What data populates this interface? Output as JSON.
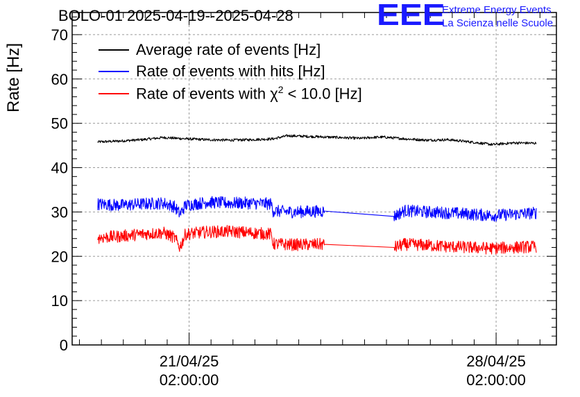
{
  "title": "BOLO-01 2025-04-19--2025-04-28",
  "logo": {
    "mark": "EEE",
    "line1": "Extreme Energy Events",
    "line2": "La Scienza nelle Scuole",
    "color": "#1a1aff"
  },
  "chart_data": {
    "type": "line",
    "ylabel": "Rate [Hz]",
    "xlabel": "",
    "ylim": [
      0,
      75
    ],
    "xlim": [
      "2025-04-18T10:00:00",
      "2025-04-29T11:00:00"
    ],
    "yticks": [
      0,
      10,
      20,
      30,
      40,
      50,
      60,
      70
    ],
    "xticks": [
      {
        "date": "2025-04-21T02:00:00",
        "line1": "21/04/25",
        "line2": "02:00:00"
      },
      {
        "date": "2025-04-28T02:00:00",
        "line1": "28/04/25",
        "line2": "02:00:00"
      }
    ],
    "grid": true,
    "legend_position": "top-left",
    "series": [
      {
        "name": "Average rate of events [Hz]",
        "legend_text": "Average rate of events [Hz]",
        "color": "#000000",
        "noise": 0.3,
        "points": [
          [
            "2025-04-19T00:00:00",
            45.8
          ],
          [
            "2025-04-19T12:00:00",
            46.0
          ],
          [
            "2025-04-20T00:00:00",
            46.3
          ],
          [
            "2025-04-20T12:00:00",
            46.8
          ],
          [
            "2025-04-21T00:00:00",
            46.5
          ],
          [
            "2025-04-21T12:00:00",
            46.3
          ],
          [
            "2025-04-22T00:00:00",
            46.2
          ],
          [
            "2025-04-22T12:00:00",
            46.3
          ],
          [
            "2025-04-23T00:00:00",
            46.5
          ],
          [
            "2025-04-23T08:00:00",
            47.2
          ],
          [
            "2025-04-24T12:00:00",
            46.8
          ],
          [
            "2025-04-25T00:00:00",
            46.6
          ],
          [
            "2025-04-25T06:00:00",
            46.8
          ],
          [
            "2025-04-25T12:00:00",
            46.9
          ],
          [
            "2025-04-26T00:00:00",
            46.5
          ],
          [
            "2025-04-26T12:00:00",
            46.2
          ],
          [
            "2025-04-27T00:00:00",
            46.3
          ],
          [
            "2025-04-27T12:00:00",
            45.8
          ],
          [
            "2025-04-28T00:00:00",
            45.2
          ],
          [
            "2025-04-28T12:00:00",
            45.6
          ],
          [
            "2025-04-29T00:00:00",
            45.5
          ]
        ]
      },
      {
        "name": "Rate of events with hits [Hz]",
        "legend_text": "Rate of events with hits [Hz]",
        "color": "#0000ff",
        "noise": 1.4,
        "points": [
          [
            "2025-04-19T00:00:00",
            31.8
          ],
          [
            "2025-04-19T12:00:00",
            31.5
          ],
          [
            "2025-04-20T00:00:00",
            31.8
          ],
          [
            "2025-04-20T12:00:00",
            32.0
          ],
          [
            "2025-04-20T18:00:00",
            31.2
          ],
          [
            "2025-04-20T21:00:00",
            29.5
          ],
          [
            "2025-04-21T00:00:00",
            31.5
          ],
          [
            "2025-04-21T12:00:00",
            32.2
          ],
          [
            "2025-04-22T00:00:00",
            32.0
          ],
          [
            "2025-04-22T12:00:00",
            32.0
          ],
          [
            "2025-04-22T23:00:00",
            31.8
          ],
          [
            "2025-04-23T00:00:00",
            30.2
          ],
          [
            "2025-04-23T12:00:00",
            30.0
          ],
          [
            "2025-04-24T04:00:00",
            30.2
          ],
          [
            "2025-04-25T18:00:00",
            29.0
          ],
          [
            "2025-04-26T00:00:00",
            30.3
          ],
          [
            "2025-04-26T12:00:00",
            30.0
          ],
          [
            "2025-04-27T00:00:00",
            29.8
          ],
          [
            "2025-04-27T12:00:00",
            29.5
          ],
          [
            "2025-04-28T00:00:00",
            29.2
          ],
          [
            "2025-04-28T12:00:00",
            29.5
          ],
          [
            "2025-04-29T00:00:00",
            29.8
          ]
        ]
      },
      {
        "name": "Rate of events with χ² < 10.0 [Hz]",
        "legend_text": "Rate of events with χ",
        "legend_sup": "2",
        "legend_tail": " < 10.0 [Hz]",
        "color": "#ff0000",
        "noise": 1.4,
        "points": [
          [
            "2025-04-19T00:00:00",
            24.2
          ],
          [
            "2025-04-19T12:00:00",
            24.5
          ],
          [
            "2025-04-20T00:00:00",
            25.0
          ],
          [
            "2025-04-20T12:00:00",
            25.3
          ],
          [
            "2025-04-20T18:00:00",
            24.2
          ],
          [
            "2025-04-20T21:00:00",
            22.0
          ],
          [
            "2025-04-21T00:00:00",
            25.0
          ],
          [
            "2025-04-21T12:00:00",
            25.5
          ],
          [
            "2025-04-22T00:00:00",
            25.6
          ],
          [
            "2025-04-22T12:00:00",
            25.3
          ],
          [
            "2025-04-22T23:00:00",
            25.0
          ],
          [
            "2025-04-23T00:00:00",
            22.8
          ],
          [
            "2025-04-23T12:00:00",
            22.6
          ],
          [
            "2025-04-24T04:00:00",
            22.7
          ],
          [
            "2025-04-25T18:00:00",
            22.0
          ],
          [
            "2025-04-26T00:00:00",
            22.7
          ],
          [
            "2025-04-26T12:00:00",
            22.5
          ],
          [
            "2025-04-27T00:00:00",
            22.2
          ],
          [
            "2025-04-27T12:00:00",
            22.0
          ],
          [
            "2025-04-28T00:00:00",
            21.8
          ],
          [
            "2025-04-28T12:00:00",
            22.0
          ],
          [
            "2025-04-29T00:00:00",
            22.2
          ]
        ]
      }
    ]
  }
}
